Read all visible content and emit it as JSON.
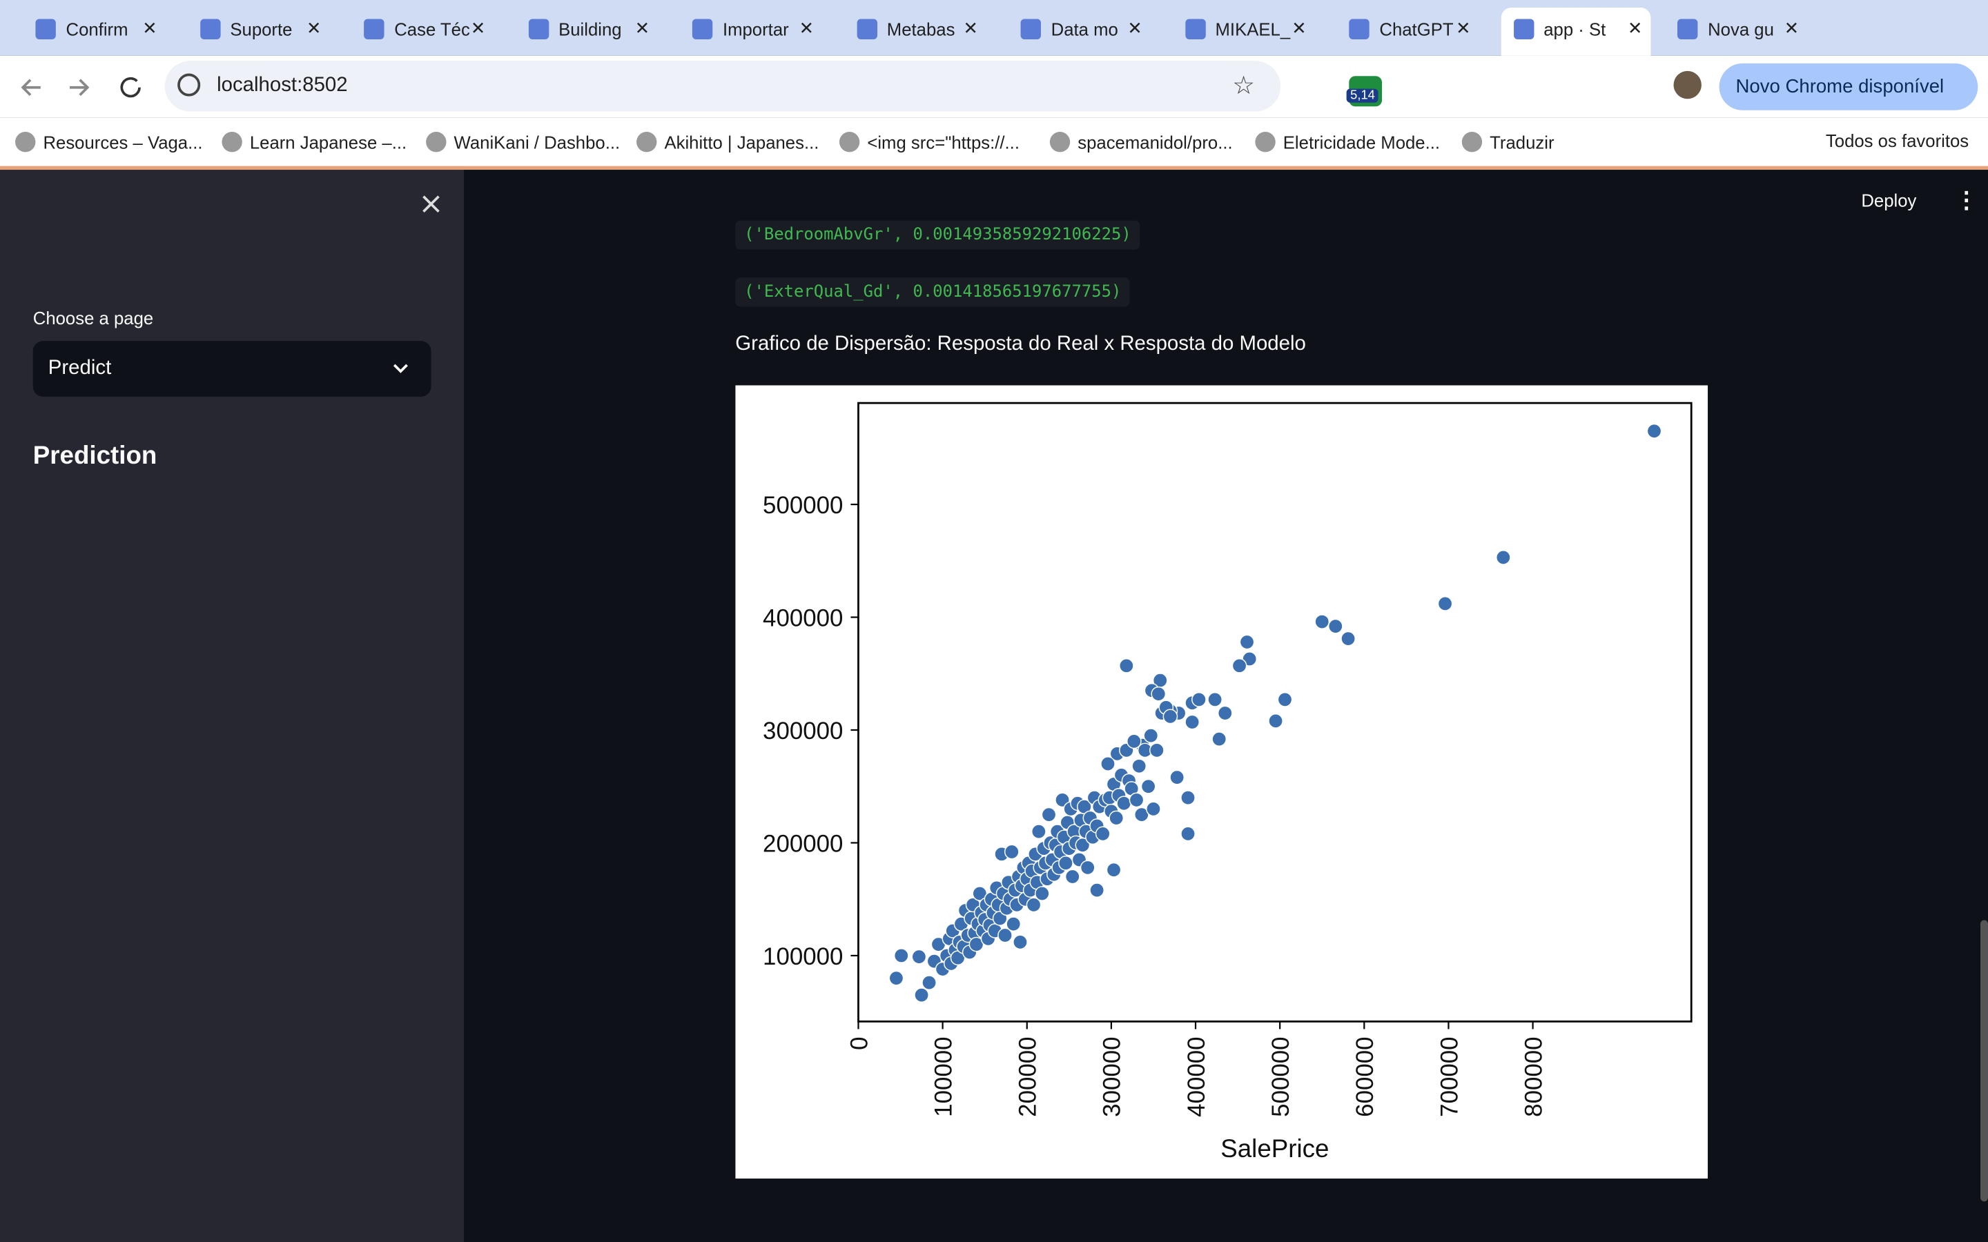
{
  "browser": {
    "tabs": [
      "Confirm",
      "Suporte",
      "Case Téc",
      "Building",
      "Importar",
      "Metabas",
      "Data mo",
      "MIKAEL_",
      "ChatGPT",
      "app · St",
      "Nova gu"
    ],
    "url": "localhost:8502",
    "extension_badge": "5,14",
    "update_button": "Novo Chrome disponível",
    "bookmarks": [
      "Resources – Vaga...",
      "Learn Japanese –...",
      "WaniKani / Dashbo...",
      "Akihitto | Japanes...",
      "<img src=\"https://...",
      "spacemanidol/pro...",
      "Eletricidade Mode...",
      "Traduzir"
    ],
    "all_bookmarks": "Todos os favoritos"
  },
  "sidebar": {
    "select_label": "Choose a page",
    "selected": "Predict",
    "heading": "Prediction"
  },
  "header": {
    "deploy": "Deploy"
  },
  "content": {
    "code_lines": [
      "('BedroomAbvGr', 0.0014935859292106225)",
      "('ExterQual_Gd', 0.001418565197677755)"
    ],
    "caption": "Grafico de Dispersão: Resposta do Real x Resposta do Modelo"
  },
  "chart_data": {
    "type": "scatter",
    "x_label": "SalePrice",
    "color": "#3b6fb0",
    "xlim": [
      0,
      988000
    ],
    "ylim": [
      41600,
      589900
    ],
    "xticks": [
      0,
      100000,
      200000,
      300000,
      400000,
      500000,
      600000,
      700000,
      800000
    ],
    "yticks": [
      100000,
      200000,
      300000,
      400000,
      500000
    ],
    "x": [
      944000,
      765000,
      696000,
      581000,
      566000,
      550000,
      506000,
      495000,
      461000,
      464000,
      452000,
      435000,
      428000,
      423000,
      318000,
      391000,
      391000,
      378000,
      358000,
      348000,
      356000,
      396000,
      404000,
      396000,
      380000,
      370000,
      337000,
      307000,
      303000,
      283000,
      45000,
      51000,
      75000,
      72000,
      84000,
      90000,
      95000,
      100000,
      105000,
      108000,
      110000,
      112000,
      115000,
      118000,
      120000,
      122000,
      125000,
      127000,
      130000,
      132000,
      134000,
      136000,
      138000,
      140000,
      142000,
      144000,
      146000,
      148000,
      150000,
      152000,
      154000,
      156000,
      158000,
      160000,
      162000,
      164000,
      166000,
      168000,
      170000,
      172000,
      174000,
      176000,
      178000,
      180000,
      182000,
      184000,
      186000,
      188000,
      190000,
      192000,
      194000,
      196000,
      198000,
      200000,
      202000,
      204000,
      206000,
      208000,
      210000,
      212000,
      214000,
      216000,
      218000,
      220000,
      222000,
      224000,
      226000,
      228000,
      230000,
      232000,
      234000,
      236000,
      238000,
      240000,
      242000,
      244000,
      246000,
      248000,
      250000,
      252000,
      254000,
      256000,
      258000,
      260000,
      262000,
      264000,
      266000,
      268000,
      270000,
      272000,
      275000,
      278000,
      280000,
      283000,
      286000,
      290000,
      293000,
      296000,
      298000,
      300000,
      303000,
      306000,
      309000,
      312000,
      315000,
      318000,
      321000,
      324000,
      327000,
      330000,
      333000,
      336000,
      340000,
      344000,
      347000,
      350000,
      354000,
      360000,
      365000,
      370000
    ],
    "values": [
      565000,
      453000,
      412000,
      381000,
      392000,
      396000,
      327000,
      308000,
      378000,
      363000,
      357000,
      315000,
      292000,
      327000,
      357000,
      208000,
      240000,
      258000,
      344000,
      335000,
      332000,
      324000,
      327000,
      307000,
      315000,
      317000,
      286500,
      279000,
      176000,
      158000,
      80000,
      100000,
      65000,
      99000,
      76000,
      95000,
      110000,
      88000,
      100000,
      115000,
      93000,
      122000,
      105000,
      98000,
      112000,
      128000,
      108000,
      140000,
      118000,
      103000,
      133000,
      145000,
      120000,
      110000,
      128000,
      155000,
      138000,
      122000,
      132000,
      145000,
      115000,
      127000,
      150000,
      138000,
      122000,
      160000,
      145000,
      133000,
      190000,
      155000,
      118000,
      142000,
      165000,
      150000,
      192000,
      128000,
      158000,
      145000,
      170000,
      112000,
      162000,
      178000,
      150000,
      168000,
      182000,
      158000,
      175000,
      145000,
      190000,
      165000,
      210000,
      178000,
      155000,
      195000,
      182000,
      168000,
      225000,
      200000,
      185000,
      172000,
      198000,
      210000,
      178000,
      192000,
      238000,
      205000,
      182000,
      218000,
      195000,
      230000,
      170000,
      210000,
      200000,
      235000,
      185000,
      220000,
      198000,
      232000,
      210000,
      178000,
      222000,
      205000,
      240000,
      215000,
      232000,
      208000,
      238000,
      270000,
      240000,
      228000,
      252000,
      222000,
      242000,
      260000,
      235000,
      282000,
      255000,
      248000,
      290000,
      238000,
      268000,
      225000,
      282000,
      250000,
      295000,
      230000,
      282000,
      315000,
      320000,
      312000
    ]
  }
}
